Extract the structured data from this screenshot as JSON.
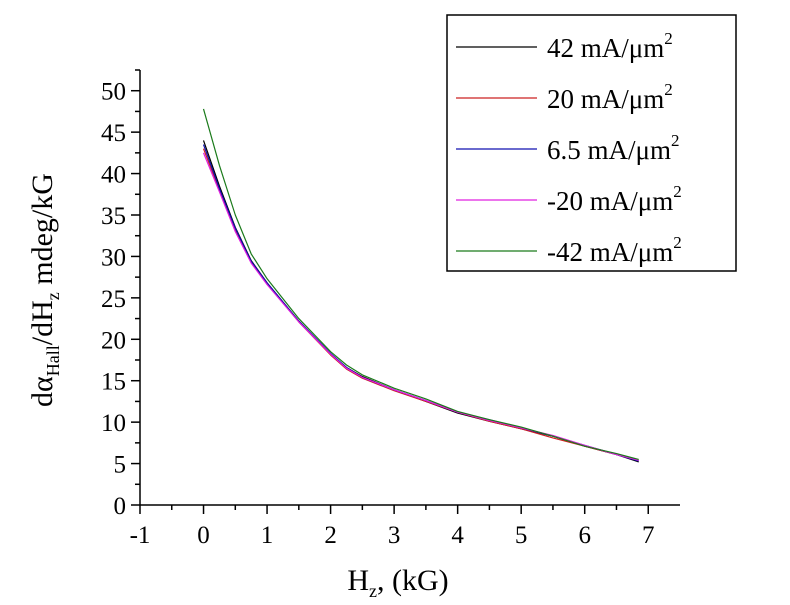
{
  "chart_data": {
    "type": "line",
    "title": "",
    "xlabel": {
      "main": "H",
      "sub": "z",
      "rest": ", (kG)"
    },
    "ylabel": {
      "p1": "dα",
      "sub1": "Hall",
      "p2": "/dH",
      "sub2": "z",
      "p3": " mdeg/kG"
    },
    "xlim": [
      -1,
      7.5
    ],
    "ylim": [
      0,
      52.5
    ],
    "x_ticks": [
      -1,
      0,
      1,
      2,
      3,
      4,
      5,
      6,
      7
    ],
    "y_ticks": [
      0,
      5,
      10,
      15,
      20,
      25,
      30,
      35,
      40,
      45,
      50
    ],
    "grid": false,
    "legend_position": "top-right",
    "series": [
      {
        "name": {
          "base": "42 mA/μm",
          "sup": "2"
        },
        "color": "#000000",
        "x": [
          0.0,
          0.25,
          0.5,
          0.75,
          1.0,
          1.5,
          2.0,
          2.25,
          2.5,
          3.0,
          3.5,
          4.0,
          4.5,
          5.0,
          5.5,
          6.0,
          6.5,
          6.85
        ],
        "y": [
          44.0,
          38.5,
          33.5,
          29.5,
          26.8,
          22.2,
          18.2,
          16.6,
          15.5,
          13.9,
          12.5,
          11.1,
          10.1,
          9.2,
          8.3,
          7.1,
          6.1,
          5.2
        ]
      },
      {
        "name": {
          "base": "20 mA/μm",
          "sup": "2"
        },
        "color": "#cc2020",
        "x": [
          0.0,
          0.25,
          0.5,
          0.75,
          1.0,
          1.5,
          2.0,
          2.25,
          2.5,
          3.0,
          3.5,
          4.0,
          4.5,
          5.0,
          5.5,
          6.0,
          6.5,
          6.85
        ],
        "y": [
          43.0,
          38.0,
          33.2,
          29.3,
          26.7,
          22.1,
          18.1,
          16.4,
          15.3,
          13.8,
          12.5,
          11.2,
          10.1,
          9.2,
          8.1,
          7.1,
          6.1,
          5.4
        ]
      },
      {
        "name": {
          "base": "6.5 mA/μm",
          "sup": "2"
        },
        "color": "#1010b0",
        "x": [
          0.0,
          0.25,
          0.5,
          0.75,
          1.0,
          1.5,
          2.0,
          2.25,
          2.5,
          3.0,
          3.5,
          4.0,
          4.5,
          5.0,
          5.5,
          6.0,
          6.5,
          6.85
        ],
        "y": [
          43.5,
          38.2,
          33.4,
          29.4,
          26.8,
          22.2,
          18.3,
          16.6,
          15.4,
          13.9,
          12.6,
          11.2,
          10.3,
          9.3,
          8.3,
          7.2,
          6.1,
          5.3
        ]
      },
      {
        "name": {
          "base": "-20 mA/μm",
          "sup": "2"
        },
        "color": "#e020e0",
        "x": [
          0.0,
          0.25,
          0.5,
          0.75,
          1.0,
          1.5,
          2.0,
          2.25,
          2.5,
          3.0,
          3.5,
          4.0,
          4.5,
          5.0,
          5.5,
          6.0,
          6.5,
          6.85
        ],
        "y": [
          42.5,
          37.8,
          33.0,
          29.2,
          26.6,
          22.1,
          18.2,
          16.5,
          15.4,
          13.9,
          12.6,
          11.2,
          10.2,
          9.3,
          8.4,
          7.2,
          6.1,
          5.4
        ]
      },
      {
        "name": {
          "base": "-42 mA/μm",
          "sup": "2"
        },
        "color": "#1a7a1a",
        "x": [
          0.0,
          0.25,
          0.5,
          0.75,
          1.0,
          1.5,
          2.0,
          2.25,
          2.5,
          3.0,
          3.5,
          4.0,
          4.5,
          5.0,
          5.5,
          6.0,
          6.5,
          6.85
        ],
        "y": [
          47.8,
          41.0,
          35.0,
          30.3,
          27.3,
          22.5,
          18.5,
          16.9,
          15.7,
          14.1,
          12.8,
          11.3,
          10.3,
          9.4,
          8.3,
          7.1,
          6.2,
          5.5
        ]
      }
    ]
  }
}
